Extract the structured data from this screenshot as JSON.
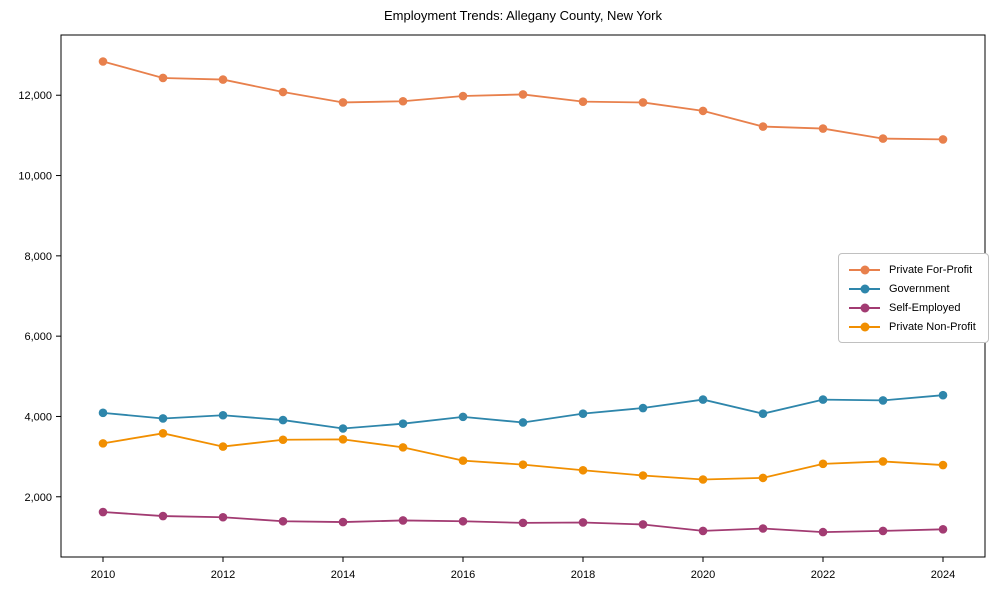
{
  "figure": {
    "background": "#ffffff",
    "frame_color": "#000000",
    "text_color": "#000000"
  },
  "chart_data": {
    "type": "line",
    "title": "Employment Trends: Allegany County, New York",
    "xlabel": "",
    "ylabel": "",
    "grid": false,
    "legend_position": "center-right",
    "xlim": [
      2009.3,
      2024.7
    ],
    "ylim": [
      500,
      13500
    ],
    "x": [
      2010,
      2011,
      2012,
      2013,
      2014,
      2015,
      2016,
      2017,
      2018,
      2019,
      2020,
      2021,
      2022,
      2023,
      2024
    ],
    "x_ticks": [
      {
        "value": 2010,
        "label": "2010"
      },
      {
        "value": 2012,
        "label": "2012"
      },
      {
        "value": 2014,
        "label": "2014"
      },
      {
        "value": 2016,
        "label": "2016"
      },
      {
        "value": 2018,
        "label": "2018"
      },
      {
        "value": 2020,
        "label": "2020"
      },
      {
        "value": 2022,
        "label": "2022"
      },
      {
        "value": 2024,
        "label": "2024"
      }
    ],
    "y_ticks": [
      {
        "value": 2000,
        "label": "2,000"
      },
      {
        "value": 4000,
        "label": "4,000"
      },
      {
        "value": 6000,
        "label": "6,000"
      },
      {
        "value": 8000,
        "label": "8,000"
      },
      {
        "value": 10000,
        "label": "10,000"
      },
      {
        "value": 12000,
        "label": "12,000"
      }
    ],
    "series": [
      {
        "name": "Private For-Profit",
        "color": "#E8804C",
        "values": [
          12840,
          12430,
          12390,
          12080,
          11820,
          11850,
          11980,
          12020,
          11840,
          11820,
          11610,
          11220,
          11170,
          10920,
          10900
        ]
      },
      {
        "name": "Government",
        "color": "#2E86AB",
        "values": [
          4090,
          3950,
          4030,
          3910,
          3700,
          3820,
          3990,
          3850,
          4070,
          4210,
          4420,
          4070,
          4420,
          4400,
          4530
        ]
      },
      {
        "name": "Self-Employed",
        "color": "#A23B72",
        "values": [
          1620,
          1520,
          1490,
          1390,
          1370,
          1410,
          1390,
          1350,
          1360,
          1310,
          1150,
          1210,
          1120,
          1150,
          1190
        ]
      },
      {
        "name": "Private Non-Profit",
        "color": "#F18F01",
        "values": [
          3330,
          3580,
          3250,
          3420,
          3430,
          3230,
          2900,
          2800,
          2660,
          2530,
          2430,
          2470,
          2820,
          2880,
          2790
        ]
      }
    ]
  }
}
